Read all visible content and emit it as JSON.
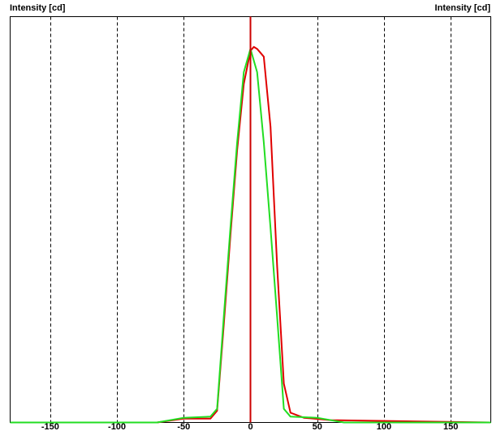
{
  "chart_data": {
    "type": "line",
    "title": "",
    "xlabel": "",
    "ylabel_left": "Intensity [cd]",
    "ylabel_right": "Intensity [cd]",
    "xlim": [
      -180,
      180
    ],
    "ylim": [
      0,
      1.0
    ],
    "x_ticks": [
      -150,
      -100,
      -50,
      0,
      50,
      100,
      150
    ],
    "x_tick_labels": [
      "-150",
      "-100",
      "-50",
      "0",
      "50",
      "100",
      "150"
    ],
    "grid": "vertical dashed",
    "legend": "none",
    "colors": {
      "axis_zero": "#cc0000",
      "series_red": "#e00000",
      "series_green": "#22dd22",
      "frame": "#000000",
      "grid": "#000000"
    },
    "series": [
      {
        "color": "#e00000",
        "points": [
          [
            -180,
            0
          ],
          [
            -70,
            0.0
          ],
          [
            -50,
            0.01
          ],
          [
            -30,
            0.01
          ],
          [
            -25,
            0.03
          ],
          [
            -20,
            0.25
          ],
          [
            -15,
            0.48
          ],
          [
            -10,
            0.7
          ],
          [
            -5,
            0.87
          ],
          [
            0,
            0.955
          ],
          [
            2.5,
            0.965
          ],
          [
            5,
            0.96
          ],
          [
            10,
            0.94
          ],
          [
            15,
            0.76
          ],
          [
            20,
            0.4
          ],
          [
            25,
            0.1
          ],
          [
            30,
            0.025
          ],
          [
            40,
            0.012
          ],
          [
            60,
            0.006
          ],
          [
            180,
            0
          ]
        ]
      },
      {
        "color": "#22dd22",
        "points": [
          [
            -180,
            0
          ],
          [
            -70,
            0.0
          ],
          [
            -50,
            0.012
          ],
          [
            -30,
            0.015
          ],
          [
            -25,
            0.035
          ],
          [
            -20,
            0.27
          ],
          [
            -15,
            0.5
          ],
          [
            -10,
            0.72
          ],
          [
            -5,
            0.9
          ],
          [
            0,
            0.96
          ],
          [
            5,
            0.9
          ],
          [
            10,
            0.72
          ],
          [
            15,
            0.5
          ],
          [
            20,
            0.27
          ],
          [
            25,
            0.035
          ],
          [
            30,
            0.015
          ],
          [
            50,
            0.012
          ],
          [
            70,
            0.0
          ],
          [
            180,
            0
          ]
        ]
      }
    ]
  }
}
